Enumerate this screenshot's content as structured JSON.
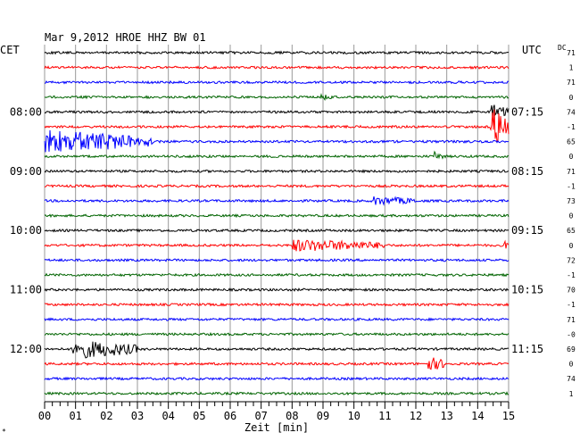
{
  "chart_data": {
    "type": "line",
    "title": "Mar 9,2012   HROE HHZ BW 01",
    "left_timezone": "CET",
    "right_timezone": "UTC",
    "dc_label": "DC",
    "xlabel": "Zeit [min]",
    "x_ticks": [
      "00",
      "01",
      "02",
      "03",
      "04",
      "05",
      "06",
      "07",
      "08",
      "09",
      "10",
      "11",
      "12",
      "13",
      "14",
      "15"
    ],
    "xlim": [
      0,
      15
    ],
    "left_hour_labels": [
      "08:00",
      "09:00",
      "10:00",
      "11:00",
      "12:00"
    ],
    "right_hour_labels": [
      "07:15",
      "08:15",
      "09:15",
      "10:15",
      "11:15"
    ],
    "trace_colors": [
      "#000000",
      "#ff0000",
      "#0000ff",
      "#006400"
    ],
    "traces": [
      {
        "dc": "71",
        "events": []
      },
      {
        "dc": "1",
        "events": []
      },
      {
        "dc": "71",
        "events": []
      },
      {
        "dc": "0",
        "events": [
          {
            "start": 8.9,
            "end": 9.3,
            "amp": 3
          }
        ]
      },
      {
        "dc": "74",
        "events": [
          {
            "start": 14.4,
            "end": 15.0,
            "amp": 8
          }
        ]
      },
      {
        "dc": "-1",
        "events": [
          {
            "start": 14.4,
            "end": 15.0,
            "amp": 22
          }
        ]
      },
      {
        "dc": "65",
        "events": [
          {
            "start": 0.0,
            "end": 3.5,
            "amp": 12
          }
        ]
      },
      {
        "dc": "0",
        "events": [
          {
            "start": 12.6,
            "end": 12.9,
            "amp": 4
          }
        ]
      },
      {
        "dc": "71",
        "events": []
      },
      {
        "dc": "-1",
        "events": []
      },
      {
        "dc": "73",
        "events": [
          {
            "start": 10.6,
            "end": 12.0,
            "amp": 4
          }
        ]
      },
      {
        "dc": "0",
        "events": []
      },
      {
        "dc": "65",
        "events": []
      },
      {
        "dc": "0",
        "events": [
          {
            "start": 8.0,
            "end": 11.0,
            "amp": 6
          },
          {
            "start": 14.8,
            "end": 15.0,
            "amp": 5
          }
        ]
      },
      {
        "dc": "72",
        "events": []
      },
      {
        "dc": "-1",
        "events": []
      },
      {
        "dc": "70",
        "events": []
      },
      {
        "dc": "-1",
        "events": []
      },
      {
        "dc": "71",
        "events": []
      },
      {
        "dc": "-0",
        "events": []
      },
      {
        "dc": "69",
        "events": [
          {
            "start": 0.9,
            "end": 3.0,
            "amp": 10
          }
        ]
      },
      {
        "dc": "0",
        "events": [
          {
            "start": 12.4,
            "end": 13.0,
            "amp": 7
          }
        ]
      },
      {
        "dc": "74",
        "events": []
      },
      {
        "dc": "1",
        "events": []
      }
    ]
  }
}
